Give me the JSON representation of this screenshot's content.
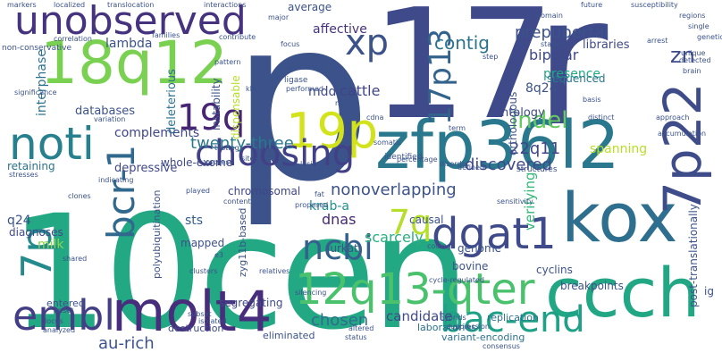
{
  "words": [
    {
      "id": "10cen",
      "text": "10cen",
      "color": "#23a884"
    },
    {
      "id": "p",
      "text": "p",
      "color": "#3b528b"
    },
    {
      "id": "17",
      "text": "17",
      "color": "#3e4a89"
    },
    {
      "id": "r",
      "text": "r",
      "color": "#3e4a89"
    },
    {
      "id": "18q12",
      "text": "18q12",
      "color": "#7ad151"
    },
    {
      "id": "unobserved",
      "text": "unobserved",
      "color": "#46337f"
    },
    {
      "id": "zfp3612",
      "text": "zfp36l2",
      "color": "#2a788e"
    },
    {
      "id": "kox",
      "text": "kox",
      "color": "#2e6e8e"
    },
    {
      "id": "ccch",
      "text": "ccch",
      "color": "#22a785"
    },
    {
      "id": "molt4",
      "text": "molt4",
      "color": "#472d7b"
    },
    {
      "id": "12q13-qter",
      "text": "12q13-qter",
      "color": "#4ac16d"
    },
    {
      "id": "noti",
      "text": "noti",
      "color": "#27808e"
    },
    {
      "id": "embl",
      "text": "embl",
      "color": "#433e85"
    },
    {
      "id": "7p22",
      "text": "7p22",
      "color": "#3e4c8a"
    },
    {
      "id": "19p",
      "text": "19p",
      "color": "#d2e21b"
    },
    {
      "id": "dgat1",
      "text": "dgat1",
      "color": "#3e4a89"
    },
    {
      "id": "bac-end",
      "text": "bac-end",
      "color": "#1fa187"
    },
    {
      "id": "choosing",
      "text": "choosing",
      "color": "#424086"
    },
    {
      "id": "xp",
      "text": "xp",
      "color": "#3b528b"
    },
    {
      "id": "7p",
      "text": "7p",
      "color": "#238a8d"
    },
    {
      "id": "19q",
      "text": "19q",
      "color": "#482475"
    },
    {
      "id": "bcr-1",
      "text": "bcr-1",
      "color": "#31688e"
    },
    {
      "id": "17p13",
      "text": "17p13",
      "color": "#33638d"
    },
    {
      "id": "ncbi",
      "text": "ncbi",
      "color": "#355f8d"
    },
    {
      "id": "7q",
      "text": "7q",
      "color": "#b5de2b"
    },
    {
      "id": "zn",
      "text": "zn",
      "color": "#3e4a89"
    },
    {
      "id": "indel",
      "text": "indel",
      "color": "#65cb5e"
    },
    {
      "id": "contig",
      "text": "contig",
      "color": "#2c738e"
    },
    {
      "id": "prepubertal",
      "text": "prepubertal",
      "color": "#3b528b"
    },
    {
      "id": "bipolar",
      "text": "bipolar",
      "color": "#3e4989"
    },
    {
      "id": "twenty-three",
      "text": "twenty-three",
      "color": "#2a788e"
    },
    {
      "id": "nonoverlapping",
      "text": "nonoverlapping",
      "color": "#3b528b"
    },
    {
      "id": "lambda",
      "text": "lambda",
      "color": "#3a538b"
    },
    {
      "id": "interphase",
      "text": "interphase",
      "color": "#2c728e"
    },
    {
      "id": "mdd",
      "text": "mdd",
      "color": "#3e4a89"
    },
    {
      "id": "cattle",
      "text": "cattle",
      "color": "#414487"
    },
    {
      "id": "affective",
      "text": "affective",
      "color": "#46327e"
    },
    {
      "id": "complements",
      "text": "complements",
      "color": "#3f4788"
    },
    {
      "id": "deleterious",
      "text": "deleterious",
      "color": "#2c728e"
    },
    {
      "id": "databases",
      "text": "databases",
      "color": "#3b528b"
    },
    {
      "id": "scarcely",
      "text": "scarcely",
      "color": "#29af7f"
    },
    {
      "id": "dnas",
      "text": "dnas",
      "color": "#482878"
    },
    {
      "id": "verifying",
      "text": "verifying",
      "color": "#35b779"
    },
    {
      "id": "22q11",
      "text": "22q11",
      "color": "#414487"
    },
    {
      "id": "discovered",
      "text": "discovered",
      "color": "#3e4a89"
    },
    {
      "id": "spanning",
      "text": "spanning",
      "color": "#b8de29"
    },
    {
      "id": "krab-a",
      "text": "krab-a",
      "color": "#21918c"
    },
    {
      "id": "sts",
      "text": "sts",
      "color": "#355f8d"
    },
    {
      "id": "milk",
      "text": "milk",
      "color": "#8fd744"
    },
    {
      "id": "q24",
      "text": "q24",
      "color": "#3b528b"
    },
    {
      "id": "8q24",
      "text": "8q24",
      "color": "#3b528b"
    },
    {
      "id": "chosen",
      "text": "chosen",
      "color": "#2f6c8e"
    },
    {
      "id": "candidate",
      "text": "candidate",
      "color": "#3e4a89"
    },
    {
      "id": "au-rich",
      "text": "au-rich",
      "color": "#3b528b"
    },
    {
      "id": "ontology",
      "text": "ontology",
      "color": "#3e4a89"
    },
    {
      "id": "presence",
      "text": "presence",
      "color": "#22a785"
    },
    {
      "id": "sequenced",
      "text": "sequenced",
      "color": "#2a788e"
    },
    {
      "id": "libraries",
      "text": "libraries",
      "color": "#3e4a89"
    },
    {
      "id": "whole-exome",
      "text": "whole-exome",
      "color": "#3f4788"
    },
    {
      "id": "depressive",
      "text": "depressive",
      "color": "#3f4788"
    },
    {
      "id": "chromosomal",
      "text": "chromosomal",
      "color": "#3f4788"
    },
    {
      "id": "retaining",
      "text": "retaining",
      "color": "#2c728e"
    },
    {
      "id": "diagnoses",
      "text": "diagnoses",
      "color": "#3e4a89"
    },
    {
      "id": "segregating",
      "text": "segregating",
      "color": "#3e4a89"
    },
    {
      "id": "destruction",
      "text": "destruction",
      "color": "#3e4a89"
    },
    {
      "id": "eliminated",
      "text": "eliminated",
      "color": "#3b528b"
    },
    {
      "id": "laboratories",
      "text": "laboratories",
      "color": "#2c728e"
    },
    {
      "id": "variant-encoding",
      "text": "variant-encoding",
      "color": "#2c728e"
    },
    {
      "id": "replication",
      "text": "replication",
      "color": "#2c728e"
    },
    {
      "id": "cyclins",
      "text": "cyclins",
      "color": "#3b528b"
    },
    {
      "id": "breakpoints",
      "text": "breakpoints",
      "color": "#3b528b"
    },
    {
      "id": "bovine",
      "text": "bovine",
      "color": "#3b528b"
    },
    {
      "id": "genome",
      "text": "genome",
      "color": "#3b528b"
    },
    {
      "id": "causal",
      "text": "causal",
      "color": "#3b528b"
    },
    {
      "id": "jurkat",
      "text": "jurkat",
      "color": "#3b528b"
    },
    {
      "id": "mapped",
      "text": "mapped",
      "color": "#3b528b"
    },
    {
      "id": "entered",
      "text": "entered",
      "color": "#3b528b"
    },
    {
      "id": "polyubiquitination",
      "text": "polyubiquitination",
      "color": "#3b528b"
    },
    {
      "id": "post-translationally",
      "text": "post-translationally",
      "color": "#3b528b"
    },
    {
      "id": "ig",
      "text": "ig",
      "color": "#3b528b"
    },
    {
      "id": "zyg11b-based",
      "text": "zyg11b-based",
      "color": "#3b528b"
    },
    {
      "id": "instability",
      "text": "instability",
      "color": "#3b528b"
    },
    {
      "id": "orthologous",
      "text": "orthologous",
      "color": "#3b528b"
    },
    {
      "id": "dispensable",
      "text": "dispensable",
      "color": "#b5de2b"
    },
    {
      "id": "average",
      "text": "average",
      "color": "#3b528b"
    },
    {
      "id": "unobserved_small",
      "text": "interactions",
      "color": "#3b528b"
    }
  ],
  "small_words": [
    "markers",
    "localized",
    "translocation",
    "interactions",
    "major",
    "affective",
    "susceptibility",
    "regions",
    "correlation",
    "families",
    "contribute",
    "focus",
    "domain",
    "future",
    "single",
    "genetic",
    "non-conservative",
    "significance",
    "pattern",
    "stimulated",
    "stages",
    "arrest",
    "brain",
    "ligase",
    "performed",
    "linked",
    "key",
    "detected",
    "unique",
    "cisplatin-induced",
    "myc",
    "respective",
    "step",
    "multiple",
    "recurrent",
    "kb",
    "rodent-human",
    "variation",
    "completely",
    "cdna",
    "viability",
    "term",
    "approach",
    "phase",
    "distinct",
    "endogenous",
    "sites",
    "testing",
    "hp",
    "basis",
    "accumulation",
    "common",
    "impaired",
    "process",
    "played",
    "somatic",
    "identified",
    "healthy",
    "structures",
    "constructed",
    "stresses",
    "indicating",
    "percentage",
    "defined",
    "disorder",
    "lesions",
    "controls",
    "g1/s",
    "sensitivity",
    "rare",
    "clones",
    "content",
    "proposed",
    "fat",
    "designated",
    "sizes",
    "shared",
    "repressors",
    "e3",
    "coding",
    "cycle-regulated",
    "hybrids",
    "sample",
    "individuals",
    "strong",
    "onset",
    "locus",
    "analyzed",
    "disequilibrium",
    "including",
    "notably",
    "silencing",
    "subset",
    "isolated",
    "altered",
    "status",
    "suppression",
    "consensus",
    "clusters",
    "relatives",
    "partially",
    "release",
    "separate",
    "locations",
    "abundance",
    "established",
    "mutations",
    "cdc"
  ]
}
